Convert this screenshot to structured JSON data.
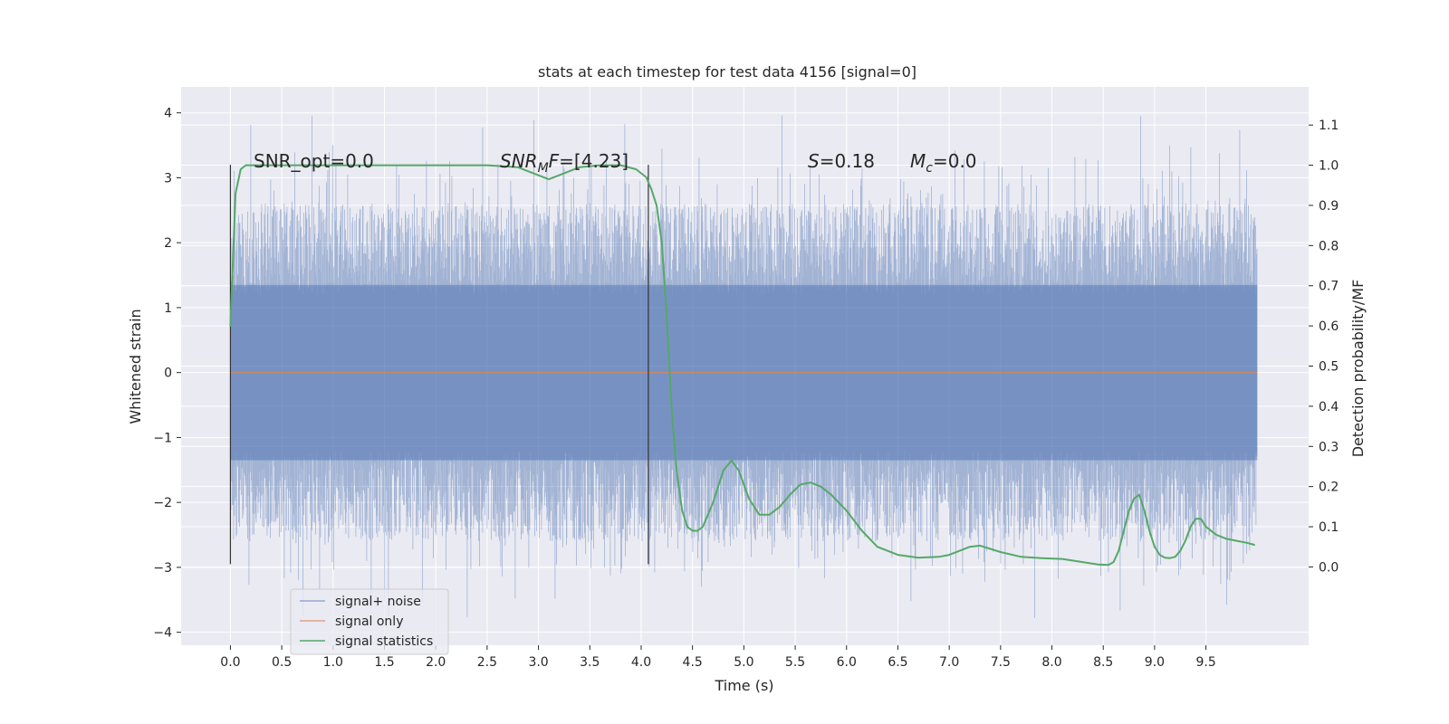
{
  "chart_data": {
    "type": "line",
    "title": "stats at each timestep for test data 4156 [signal=0]",
    "xlabel": "Time (s)",
    "ylabel": "Whitened strain",
    "y2label": "Detection probability/MF",
    "xlim": [
      -0.48,
      10.5
    ],
    "ylim": [
      -4.2,
      4.4
    ],
    "y2lim": [
      -0.195,
      1.195
    ],
    "xticks": [
      "0.0",
      "0.5",
      "1.0",
      "1.5",
      "2.0",
      "2.5",
      "3.0",
      "3.5",
      "4.0",
      "4.5",
      "5.0",
      "5.5",
      "6.0",
      "6.5",
      "7.0",
      "7.5",
      "8.0",
      "8.5",
      "9.0",
      "9.5"
    ],
    "yticks": [
      "−4",
      "−3",
      "−2",
      "−1",
      "0",
      "1",
      "2",
      "3",
      "4"
    ],
    "y2ticks": [
      "0.0",
      "0.1",
      "0.2",
      "0.3",
      "0.4",
      "0.5",
      "0.6",
      "0.7",
      "0.8",
      "0.9",
      "1.0",
      "1.1"
    ],
    "grid": true,
    "legend_position": "lower-left",
    "colors": {
      "background": "#EAEAF2",
      "grid": "#FFFFFF",
      "noise": "#4C72B0",
      "signal": "#DD8452",
      "statistics": "#55A868",
      "marker_line": "#333333"
    },
    "series": [
      {
        "name": "signal+ noise",
        "axis": "left",
        "x_range": [
          0.0,
          10.0
        ],
        "peak_envelope": {
          "positive_typical": 2.6,
          "negative_typical": -2.6,
          "positive_max": 4.05,
          "negative_max": -3.8
        }
      },
      {
        "name": "signal only",
        "axis": "left",
        "x": [
          0.0,
          10.0
        ],
        "y": [
          0.0,
          0.0
        ]
      },
      {
        "name": "signal statistics",
        "axis": "right",
        "x": [
          0.0,
          0.05,
          0.1,
          0.15,
          0.2,
          0.5,
          1.0,
          1.5,
          2.0,
          2.5,
          2.8,
          3.0,
          3.1,
          3.2,
          3.4,
          3.6,
          3.8,
          3.95,
          4.05,
          4.1,
          4.15,
          4.2,
          4.25,
          4.3,
          4.35,
          4.4,
          4.45,
          4.5,
          4.55,
          4.6,
          4.7,
          4.8,
          4.88,
          4.95,
          5.05,
          5.15,
          5.25,
          5.35,
          5.45,
          5.55,
          5.65,
          5.75,
          5.85,
          6.0,
          6.15,
          6.3,
          6.5,
          6.7,
          6.9,
          7.0,
          7.1,
          7.2,
          7.3,
          7.5,
          7.7,
          7.9,
          8.1,
          8.3,
          8.45,
          8.55,
          8.6,
          8.65,
          8.7,
          8.75,
          8.8,
          8.85,
          8.9,
          8.95,
          9.0,
          9.05,
          9.1,
          9.15,
          9.2,
          9.25,
          9.3,
          9.35,
          9.4,
          9.45,
          9.5,
          9.6,
          9.7,
          9.8,
          9.9,
          9.97
        ],
        "y": [
          0.6,
          0.93,
          0.99,
          1.0,
          1.0,
          1.0,
          1.0,
          1.0,
          1.0,
          1.0,
          0.995,
          0.975,
          0.965,
          0.975,
          0.995,
          1.0,
          1.0,
          0.99,
          0.97,
          0.94,
          0.9,
          0.81,
          0.62,
          0.38,
          0.23,
          0.14,
          0.1,
          0.09,
          0.09,
          0.1,
          0.16,
          0.24,
          0.265,
          0.24,
          0.17,
          0.13,
          0.13,
          0.15,
          0.18,
          0.205,
          0.21,
          0.2,
          0.18,
          0.14,
          0.09,
          0.05,
          0.03,
          0.023,
          0.025,
          0.03,
          0.04,
          0.05,
          0.053,
          0.037,
          0.025,
          0.022,
          0.02,
          0.012,
          0.006,
          0.005,
          0.012,
          0.04,
          0.09,
          0.14,
          0.17,
          0.18,
          0.14,
          0.09,
          0.05,
          0.03,
          0.023,
          0.022,
          0.025,
          0.04,
          0.065,
          0.1,
          0.12,
          0.12,
          0.1,
          0.08,
          0.07,
          0.065,
          0.06,
          0.055
        ]
      }
    ],
    "vertical_markers": [
      {
        "x": 0.0,
        "y_range": [
          -2.95,
          3.2
        ]
      },
      {
        "x": 4.07,
        "y_range": [
          -2.95,
          3.2
        ]
      }
    ],
    "annotations": [
      {
        "id": "snr_opt",
        "text": "SNR_opt=0.0"
      },
      {
        "id": "snr_mf",
        "text": "SNR_M F=[4.23]"
      },
      {
        "id": "s",
        "text": "S=0.18"
      },
      {
        "id": "mc",
        "text": "M_c=0.0"
      }
    ]
  },
  "annotation_parts": {
    "snr_mf": {
      "base": "SNR",
      "sub": "M",
      "tail": "F",
      "value": "=[4.23]"
    },
    "s": {
      "base": "S",
      "value": "=0.18"
    },
    "mc": {
      "base": "M",
      "sub": "c",
      "value": "=0.0"
    }
  },
  "legend": {
    "items": [
      "signal+ noise",
      "signal only",
      "signal statistics"
    ]
  }
}
